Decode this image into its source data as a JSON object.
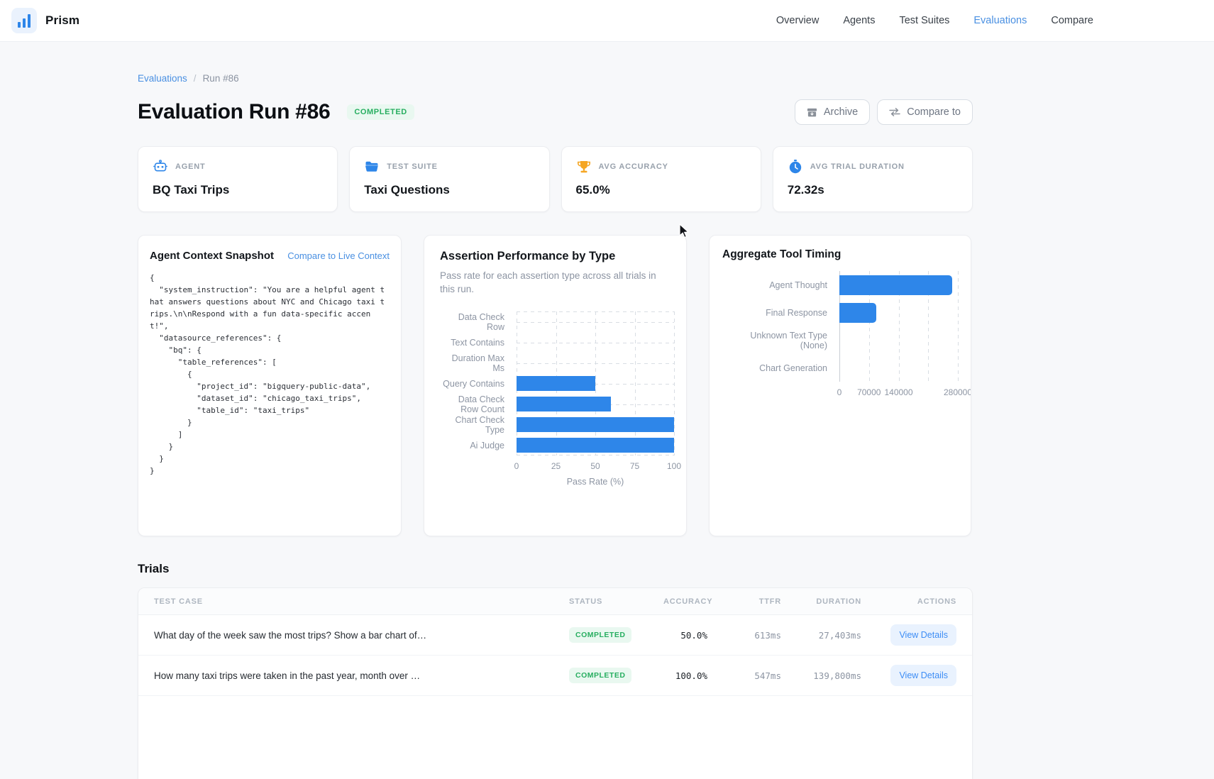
{
  "brand": {
    "name": "Prism"
  },
  "nav": {
    "items": [
      {
        "label": "Overview",
        "active": false
      },
      {
        "label": "Agents",
        "active": false
      },
      {
        "label": "Test Suites",
        "active": false
      },
      {
        "label": "Evaluations",
        "active": true
      },
      {
        "label": "Compare",
        "active": false
      }
    ]
  },
  "breadcrumb": {
    "link": "Evaluations",
    "separator": "/",
    "current": "Run #86"
  },
  "header": {
    "title": "Evaluation Run #86",
    "status_badge": "COMPLETED",
    "archive_label": "Archive",
    "compare_label": "Compare to"
  },
  "stats": [
    {
      "icon": "robot-icon",
      "label": "AGENT",
      "value": "BQ Taxi Trips"
    },
    {
      "icon": "folder-icon",
      "label": "TEST SUITE",
      "value": "Taxi Questions"
    },
    {
      "icon": "trophy-icon",
      "label": "AVG ACCURACY",
      "value": "65.0%"
    },
    {
      "icon": "stopwatch-icon",
      "label": "AVG TRIAL DURATION",
      "value": "72.32s"
    }
  ],
  "context_card": {
    "title": "Agent Context Snapshot",
    "link": "Compare to Live Context",
    "code": "{\n  \"system_instruction\": \"You are a helpful agent t\nhat answers questions about NYC and Chicago taxi t\nrips.\\n\\nRespond with a fun data-specific accen\nt!\",\n  \"datasource_references\": {\n    \"bq\": {\n      \"table_references\": [\n        {\n          \"project_id\": \"bigquery-public-data\",\n          \"dataset_id\": \"chicago_taxi_trips\",\n          \"table_id\": \"taxi_trips\"\n        }\n      ]\n    }\n  }\n}"
  },
  "chart_data": [
    {
      "type": "bar",
      "orientation": "horizontal",
      "title": "Assertion Performance by Type",
      "subtitle": "Pass rate for each assertion type across all trials in this run.",
      "categories": [
        "Data Check Row",
        "Text Contains",
        "Duration Max Ms",
        "Query Contains",
        "Data Check Row Count",
        "Chart Check Type",
        "Ai Judge"
      ],
      "values": [
        0,
        0,
        0,
        50,
        60,
        100,
        100
      ],
      "xlabel": "Pass Rate (%)",
      "xlim": [
        0,
        100
      ],
      "xticks": [
        0,
        25,
        50,
        75,
        100
      ],
      "xtick_labels": [
        "0",
        "25",
        "50",
        "75",
        "100"
      ],
      "bar_color": "#2e86e9",
      "grid": "dashed",
      "legend": false
    },
    {
      "type": "bar",
      "orientation": "horizontal",
      "title": "Aggregate Tool Timing",
      "subtitle": "",
      "categories": [
        "Agent Thought",
        "Final Response",
        "Unknown Text Type (None)",
        "Chart Generation"
      ],
      "values": [
        267000,
        88000,
        0,
        0
      ],
      "xlabel": "",
      "xlim": [
        0,
        280000
      ],
      "xticks": [
        0,
        70000,
        140000,
        210000,
        280000
      ],
      "xtick_labels": [
        "0",
        "70000",
        "140000",
        "",
        "280000"
      ],
      "bar_color": "#2e86e9",
      "grid": "dashed",
      "legend": false
    }
  ],
  "trials": {
    "title": "Trials",
    "columns": [
      "TEST CASE",
      "STATUS",
      "ACCURACY",
      "TTFR",
      "DURATION",
      "ACTIONS"
    ],
    "rows": [
      {
        "test_case": "What day of the week saw the most trips? Show a bar chart of…",
        "status": "COMPLETED",
        "accuracy": "50.0%",
        "ttfr": "613ms",
        "duration": "27,403ms",
        "action": "View Details"
      },
      {
        "test_case": "How many taxi trips were taken in the past year, month over …",
        "status": "COMPLETED",
        "accuracy": "100.0%",
        "ttfr": "547ms",
        "duration": "139,800ms",
        "action": "View Details"
      }
    ]
  }
}
